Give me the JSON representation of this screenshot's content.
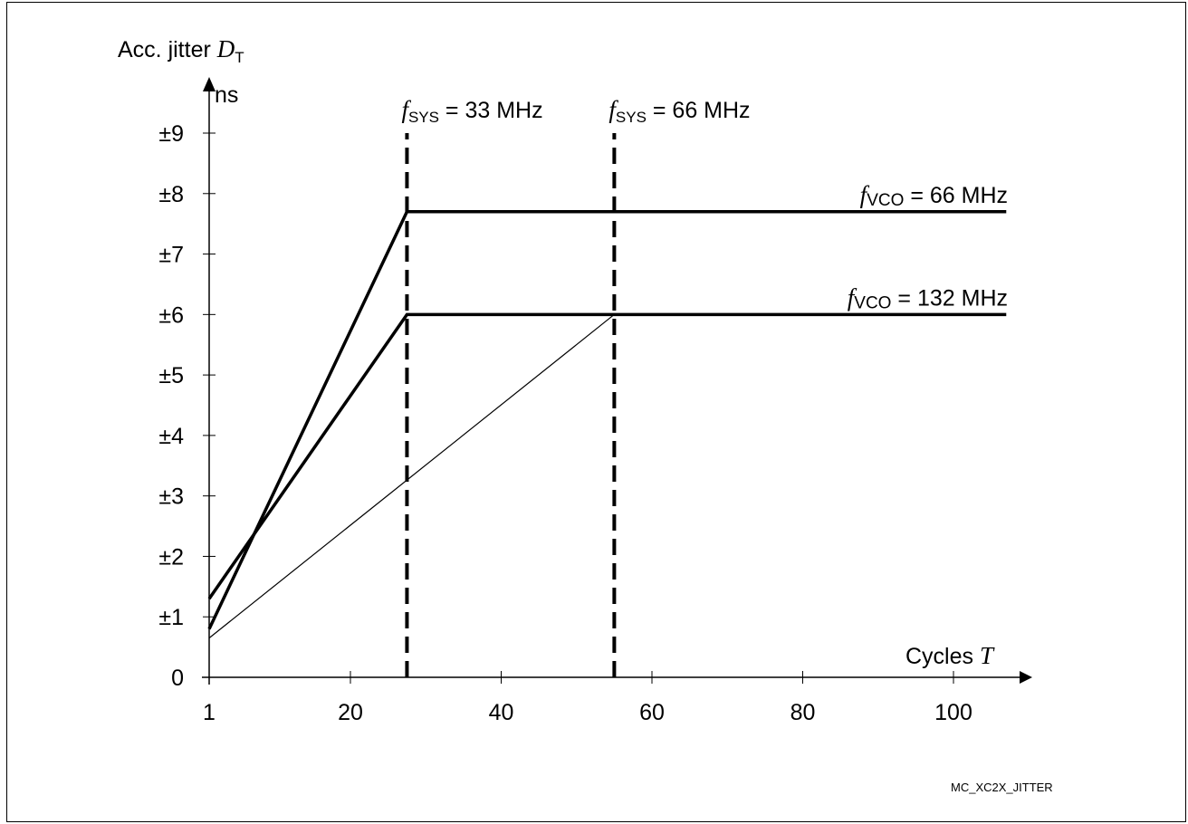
{
  "figure_id": "MC_XC2X_JITTER",
  "chart_data": {
    "type": "line",
    "y_axis": {
      "label_main": "Acc. jitter ",
      "label_symbol": "D",
      "label_subscript": "T",
      "unit": "ns",
      "ticks": [
        0,
        1,
        2,
        3,
        4,
        5,
        6,
        7,
        8,
        9
      ],
      "tick_labels": [
        "0",
        "±1",
        "±2",
        "±3",
        "±4",
        "±5",
        "±6",
        "±7",
        "±8",
        "±9"
      ]
    },
    "x_axis": {
      "label_main": "Cycles ",
      "label_symbol": "T",
      "ticks": [
        1,
        20,
        40,
        60,
        80,
        100
      ],
      "tick_labels": [
        "1",
        "20",
        "40",
        "60",
        "80",
        "100"
      ]
    },
    "series": [
      {
        "name": "fVCO = 66 MHz",
        "label_f": "f",
        "label_sub": "VCO",
        "label_rest": " = 66 MHz",
        "style": "thick",
        "points": [
          [
            1,
            0.8
          ],
          [
            27.5,
            7.7
          ],
          [
            107,
            7.7
          ]
        ]
      },
      {
        "name": "fVCO = 132 MHz",
        "label_f": "f",
        "label_sub": "VCO",
        "label_rest": " = 132 MHz",
        "style": "thick",
        "points": [
          [
            1,
            1.3
          ],
          [
            27.5,
            6.0
          ],
          [
            107,
            6.0
          ]
        ]
      },
      {
        "style": "thin",
        "points": [
          [
            1,
            0.65
          ],
          [
            55,
            6.0
          ]
        ]
      }
    ],
    "markers": [
      {
        "x": 27.5,
        "label_f": "f",
        "label_sub": "SYS",
        "label_rest": " = 33 MHz"
      },
      {
        "x": 55,
        "label_f": "f",
        "label_sub": "SYS",
        "label_rest": " = 66 MHz"
      }
    ]
  }
}
